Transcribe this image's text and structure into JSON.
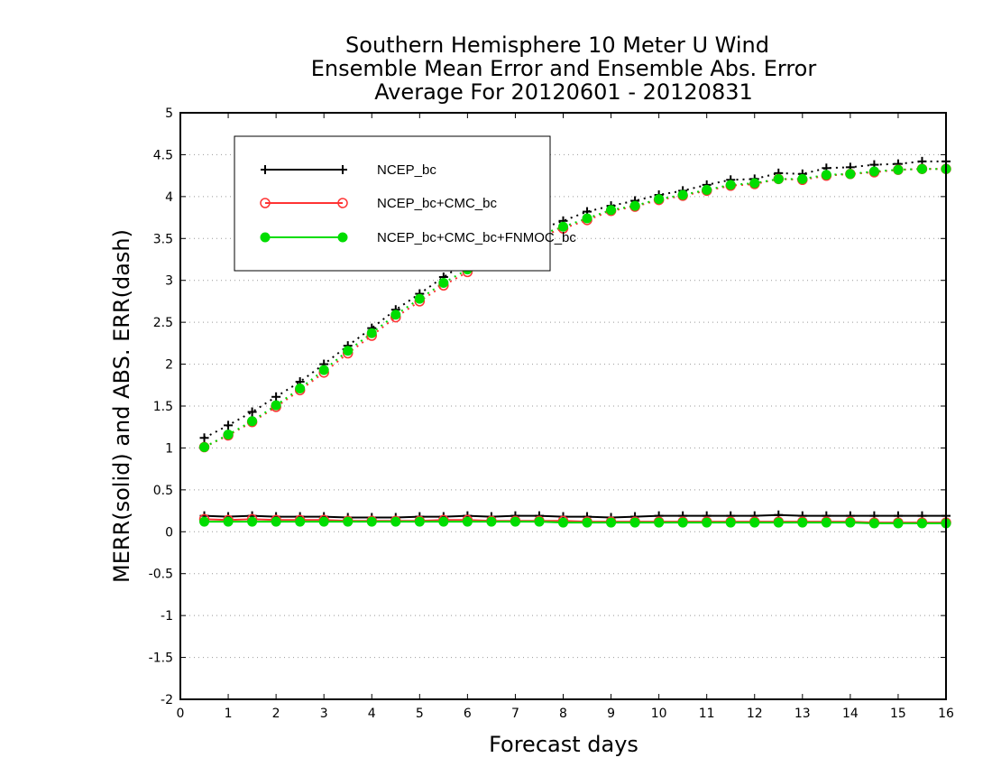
{
  "chart_data": {
    "type": "line",
    "title": [
      "Southern Hemisphere 10 Meter U Wind",
      "Ensemble Mean Error and Ensemble Abs. Error",
      "Average For 20120601 - 20120831"
    ],
    "xlabel": "Forecast days",
    "ylabel": "MERR(solid) and ABS. ERR(dash)",
    "xlim": [
      0,
      16
    ],
    "ylim": [
      -2,
      5
    ],
    "xticks": [
      0,
      1,
      2,
      3,
      4,
      5,
      6,
      7,
      8,
      9,
      10,
      11,
      12,
      13,
      14,
      15,
      16
    ],
    "yticks": [
      -2,
      -1.5,
      -1,
      -0.5,
      0,
      0.5,
      1,
      1.5,
      2,
      2.5,
      3,
      3.5,
      4,
      4.5,
      5
    ],
    "grid": "horizontal dotted",
    "legend_position": "top-left",
    "legend": [
      "NCEP_bc",
      "NCEP_bc+CMC_bc",
      "NCEP_bc+CMC_bc+FNMOC_bc"
    ],
    "x": [
      0.5,
      1,
      1.5,
      2,
      2.5,
      3,
      3.5,
      4,
      4.5,
      5,
      5.5,
      6,
      6.5,
      7,
      7.5,
      8,
      8.5,
      9,
      9.5,
      10,
      10.5,
      11,
      11.5,
      12,
      12.5,
      13,
      13.5,
      14,
      14.5,
      15,
      15.5,
      16
    ],
    "series": [
      {
        "name": "NCEP_bc",
        "color": "#000000",
        "marker": "plus",
        "merr": [
          0.19,
          0.18,
          0.19,
          0.18,
          0.18,
          0.18,
          0.17,
          0.17,
          0.17,
          0.18,
          0.18,
          0.19,
          0.18,
          0.19,
          0.19,
          0.18,
          0.18,
          0.17,
          0.18,
          0.19,
          0.19,
          0.19,
          0.19,
          0.19,
          0.2,
          0.19,
          0.19,
          0.19,
          0.19,
          0.19,
          0.19,
          0.19
        ],
        "abs_err": [
          1.12,
          1.27,
          1.43,
          1.61,
          1.79,
          2.0,
          2.22,
          2.43,
          2.65,
          2.84,
          3.04,
          3.22,
          3.37,
          3.5,
          3.61,
          3.71,
          3.82,
          3.89,
          3.95,
          4.02,
          4.07,
          4.14,
          4.2,
          4.21,
          4.28,
          4.27,
          4.34,
          4.35,
          4.38,
          4.39,
          4.42,
          4.42
        ]
      },
      {
        "name": "NCEP_bc+CMC_bc",
        "color": "#ff3333",
        "marker": "open-circle",
        "merr": [
          0.15,
          0.14,
          0.15,
          0.14,
          0.14,
          0.14,
          0.13,
          0.13,
          0.13,
          0.13,
          0.14,
          0.14,
          0.13,
          0.13,
          0.13,
          0.13,
          0.12,
          0.12,
          0.12,
          0.12,
          0.12,
          0.12,
          0.12,
          0.12,
          0.12,
          0.12,
          0.12,
          0.12,
          0.11,
          0.11,
          0.11,
          0.11
        ],
        "abs_err": [
          1.01,
          1.15,
          1.31,
          1.49,
          1.69,
          1.9,
          2.13,
          2.34,
          2.56,
          2.75,
          2.94,
          3.1,
          3.25,
          3.39,
          3.52,
          3.62,
          3.72,
          3.83,
          3.88,
          3.96,
          4.01,
          4.07,
          4.13,
          4.15,
          4.21,
          4.2,
          4.25,
          4.27,
          4.29,
          4.32,
          4.33,
          4.33
        ]
      },
      {
        "name": "NCEP_bc+CMC_bc+FNMOC_bc",
        "color": "#00dd00",
        "marker": "filled-circle",
        "merr": [
          0.12,
          0.12,
          0.12,
          0.12,
          0.12,
          0.12,
          0.12,
          0.12,
          0.12,
          0.12,
          0.12,
          0.12,
          0.12,
          0.12,
          0.12,
          0.11,
          0.11,
          0.11,
          0.11,
          0.11,
          0.11,
          0.11,
          0.11,
          0.11,
          0.11,
          0.11,
          0.11,
          0.11,
          0.1,
          0.1,
          0.1,
          0.1
        ],
        "abs_err": [
          1.01,
          1.16,
          1.32,
          1.51,
          1.71,
          1.93,
          2.16,
          2.37,
          2.59,
          2.78,
          2.97,
          3.13,
          3.28,
          3.42,
          3.54,
          3.64,
          3.74,
          3.84,
          3.89,
          3.97,
          4.02,
          4.08,
          4.14,
          4.16,
          4.21,
          4.21,
          4.26,
          4.27,
          4.3,
          4.32,
          4.33,
          4.33
        ]
      }
    ]
  }
}
